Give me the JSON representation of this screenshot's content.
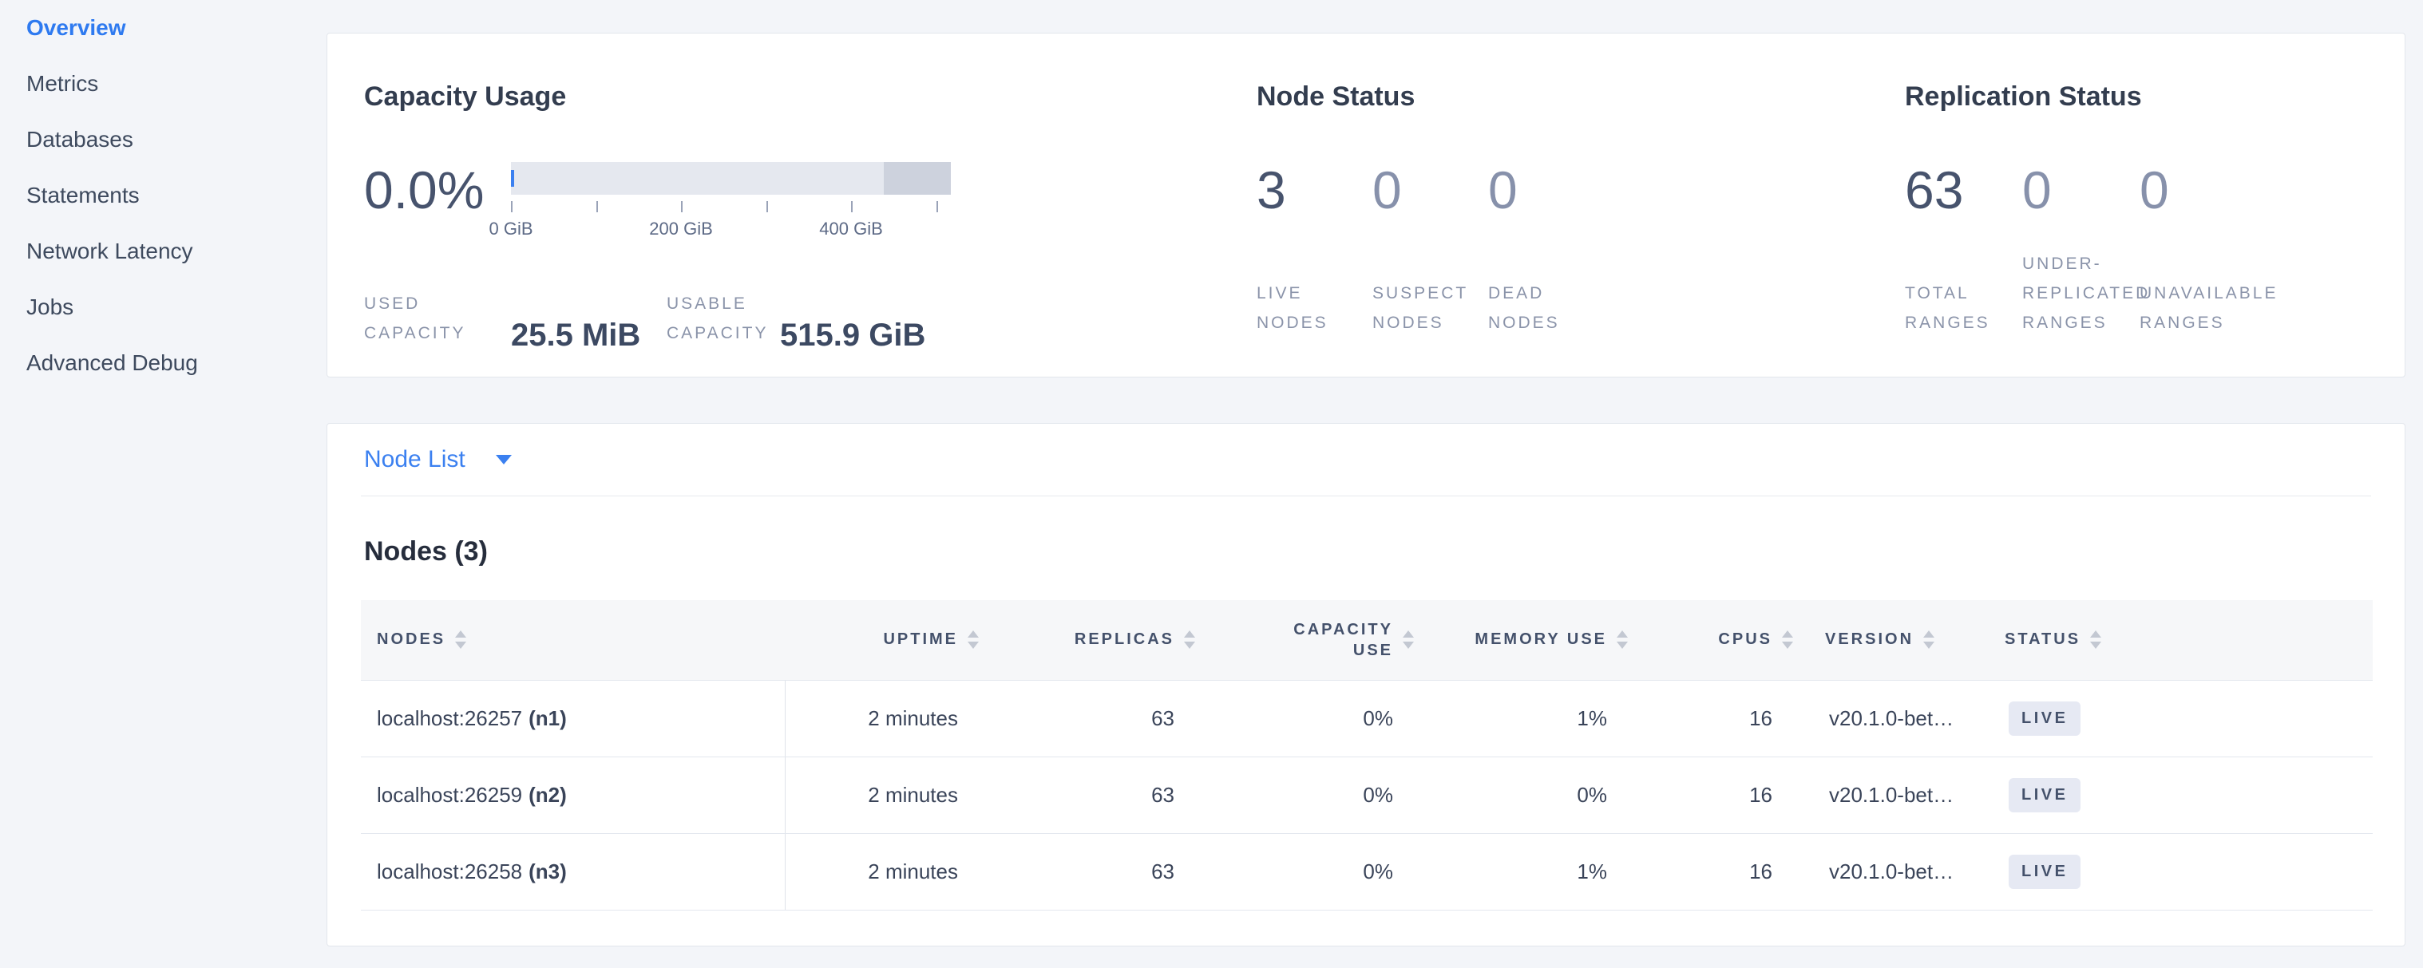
{
  "sidebar": {
    "items": [
      {
        "label": "Overview",
        "active": true
      },
      {
        "label": "Metrics",
        "active": false
      },
      {
        "label": "Databases",
        "active": false
      },
      {
        "label": "Statements",
        "active": false
      },
      {
        "label": "Network Latency",
        "active": false
      },
      {
        "label": "Jobs",
        "active": false
      },
      {
        "label": "Advanced Debug",
        "active": false
      }
    ]
  },
  "capacity": {
    "title": "Capacity Usage",
    "percent_used": "0.0%",
    "chart": {
      "type": "bar",
      "tick_positions_pct": [
        0,
        19.33,
        38.66,
        57.99,
        77.32,
        96.65
      ],
      "tick_values_gib": [
        0,
        100,
        200,
        300,
        400,
        500
      ],
      "tick_labels": [
        "0 GiB",
        "200 GiB",
        "400 GiB"
      ],
      "label_tick_indexes": [
        0,
        2,
        4
      ],
      "other_usage_start_pct": 84.7
    },
    "stats": [
      {
        "label": "USED CAPACITY",
        "value": "25.5 MiB"
      },
      {
        "label": "USABLE CAPACITY",
        "value": "515.9 GiB"
      }
    ]
  },
  "node_status": {
    "title": "Node Status",
    "stats": [
      {
        "value": "3",
        "label": "LIVE NODES"
      },
      {
        "value": "0",
        "label": "SUSPECT NODES"
      },
      {
        "value": "0",
        "label": "DEAD NODES"
      }
    ]
  },
  "replication": {
    "title": "Replication Status",
    "stats": [
      {
        "value": "63",
        "label": "TOTAL RANGES"
      },
      {
        "value": "0",
        "label": "UNDER-REPLICATED RANGES"
      },
      {
        "value": "0",
        "label": "UNAVAILABLE RANGES"
      }
    ]
  },
  "node_list": {
    "dropdown_label": "Node List",
    "heading": "Nodes (3)",
    "table": {
      "headers": [
        "NODES",
        "UPTIME",
        "REPLICAS",
        "CAPACITY USE",
        "MEMORY USE",
        "CPUS",
        "VERSION",
        "STATUS"
      ],
      "rows": [
        {
          "address": "localhost:26257",
          "id": "(n1)",
          "uptime": "2 minutes",
          "replicas": "63",
          "capacity_use": "0%",
          "memory_use": "1%",
          "cpus": "16",
          "version": "v20.1.0-bet…",
          "status": "LIVE"
        },
        {
          "address": "localhost:26259",
          "id": "(n2)",
          "uptime": "2 minutes",
          "replicas": "63",
          "capacity_use": "0%",
          "memory_use": "0%",
          "cpus": "16",
          "version": "v20.1.0-bet…",
          "status": "LIVE"
        },
        {
          "address": "localhost:26258",
          "id": "(n3)",
          "uptime": "2 minutes",
          "replicas": "63",
          "capacity_use": "0%",
          "memory_use": "1%",
          "cpus": "16",
          "version": "v20.1.0-bet…",
          "status": "LIVE"
        }
      ]
    }
  },
  "colors": {
    "accent_blue": "#3b80f0",
    "page_bg": "#f3f5f9",
    "bar_light": "#e5e8ef",
    "bar_dark": "#cdd2dd",
    "badge_bg": "#e6e9f3"
  }
}
